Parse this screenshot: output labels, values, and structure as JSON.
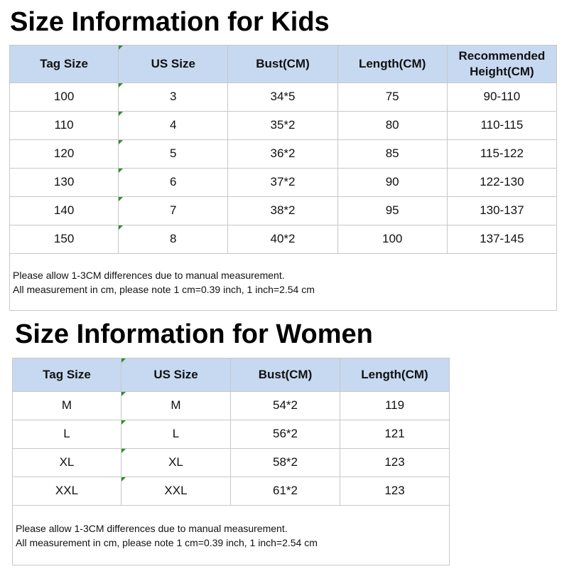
{
  "kids": {
    "title": "Size Information for Kids",
    "table": {
      "header": [
        "Tag Size",
        "US Size",
        "Bust(CM)",
        "Length(CM)",
        "Recommended Height(CM)"
      ],
      "rows": [
        [
          "100",
          "3",
          "34*5",
          "75",
          "90-110"
        ],
        [
          "110",
          "4",
          "35*2",
          "80",
          "110-115"
        ],
        [
          "120",
          "5",
          "36*2",
          "85",
          "115-122"
        ],
        [
          "130",
          "6",
          "37*2",
          "90",
          "122-130"
        ],
        [
          "140",
          "7",
          "38*2",
          "95",
          "130-137"
        ],
        [
          "150",
          "8",
          "40*2",
          "100",
          "137-145"
        ]
      ]
    },
    "notes": [
      "Please allow 1-3CM differences due to manual measurement.",
      "All measurement in cm, please note 1 cm=0.39 inch, 1 inch=2.54 cm"
    ]
  },
  "women": {
    "title": "Size Information for Women",
    "table": {
      "header": [
        "Tag Size",
        "US Size",
        "Bust(CM)",
        "Length(CM)"
      ],
      "rows": [
        [
          "M",
          "M",
          "54*2",
          "119"
        ],
        [
          "L",
          "L",
          "56*2",
          "121"
        ],
        [
          "XL",
          "XL",
          "58*2",
          "123"
        ],
        [
          "XXL",
          "XXL",
          "61*2",
          "123"
        ]
      ]
    },
    "notes": [
      "Please allow 1-3CM differences due to manual measurement.",
      "All measurement in cm, please note 1 cm=0.39 inch, 1 inch=2.54 cm"
    ]
  }
}
